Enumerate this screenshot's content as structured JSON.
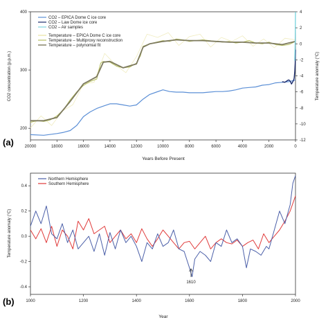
{
  "colors": {
    "co2_epica": "#5b8fd6",
    "co2_law": "#1a2a6c",
    "co2_air": "#7fd6e0",
    "temp_epica": "#f0ecc0",
    "temp_multiproxy": "#b6bf60",
    "temp_fit": "#7d7a5e",
    "nh": "#4b5fa8",
    "sh": "#e03a3a",
    "axis": "#333333"
  },
  "panel_a": {
    "label": "(a)",
    "xlabel": "Years Before Present",
    "ylabel_left": "CO2 concentration (p.p.m.)",
    "ylabel_right": "Temperature anomaly (°C)",
    "xticks": [
      "20000",
      "18000",
      "16000",
      "14000",
      "12000",
      "10000",
      "8000",
      "6000",
      "4000",
      "2000",
      "0"
    ],
    "yticks_left": [
      "200",
      "300",
      "400"
    ],
    "yticks_right": [
      "4",
      "2",
      "0",
      "-2",
      "-4",
      "-6",
      "-8",
      "-10",
      "-12"
    ],
    "legend_top": [
      "CO2 – EPICA Dome C ice core",
      "CO2 – Law Dome ice core",
      "CO2 – Air samples"
    ],
    "legend_bottom": [
      "Temperature – EPICA Dome C ice core",
      "Temperature – Multiproxy reconstruction",
      "Temperature – polynomial fit"
    ]
  },
  "panel_b": {
    "label": "(b)",
    "xlabel": "Year",
    "ylabel": "Temperature anomaly (°C)",
    "xticks": [
      "1000",
      "1200",
      "1400",
      "1600",
      "1800",
      "2000"
    ],
    "yticks": [
      "0.4",
      "0.2",
      "0.0",
      "-0.2",
      "-0.4"
    ],
    "legend": [
      "Northern Hemisphere",
      "Southern Hemisphere"
    ],
    "annotation": "1610"
  },
  "chart_data": [
    {
      "type": "line",
      "title": "",
      "xlabel": "Years Before Present",
      "ylabel": "CO2 concentration (p.p.m.)",
      "y2label": "Temperature anomaly (°C)",
      "xlim": [
        20000,
        0
      ],
      "ylim": [
        180,
        400
      ],
      "y2lim": [
        -12,
        4
      ],
      "series": [
        {
          "name": "CO2 – EPICA Dome C ice core",
          "axis": "left",
          "x": [
            20000,
            19000,
            18000,
            17500,
            17000,
            16500,
            16000,
            15500,
            15000,
            14500,
            14000,
            13500,
            13000,
            12500,
            12000,
            11500,
            11000,
            10500,
            10000,
            9500,
            9000,
            8500,
            8000,
            7500,
            7000,
            6500,
            6000,
            5500,
            5000,
            4500,
            4000,
            3500,
            3000,
            2500,
            2000,
            1500,
            1000,
            500,
            0
          ],
          "y": [
            189,
            188,
            191,
            193,
            196,
            205,
            220,
            228,
            234,
            238,
            242,
            242,
            240,
            238,
            240,
            250,
            258,
            262,
            266,
            263,
            262,
            262,
            261,
            261,
            261,
            262,
            263,
            263,
            264,
            266,
            269,
            270,
            271,
            274,
            275,
            278,
            279,
            280,
            283
          ]
        },
        {
          "name": "CO2 – Law Dome ice core",
          "axis": "left",
          "x": [
            1000,
            800,
            600,
            500,
            400,
            300,
            250,
            200,
            150,
            100,
            50,
            20,
            0
          ],
          "y": [
            280,
            279,
            282,
            283,
            281,
            276,
            278,
            280,
            282,
            286,
            298,
            312,
            335
          ]
        },
        {
          "name": "CO2 – Air samples",
          "axis": "left",
          "x": [
            60,
            40,
            20,
            0
          ],
          "y": [
            316,
            330,
            350,
            400
          ]
        },
        {
          "name": "Temperature – Multiproxy reconstruction",
          "axis": "right",
          "x": [
            20000,
            19500,
            19000,
            18500,
            18000,
            17500,
            17000,
            16500,
            16000,
            15500,
            15000,
            14700,
            14500,
            14000,
            13500,
            13000,
            12500,
            12000,
            11700,
            11500,
            11000,
            10500,
            10000,
            9500,
            9000,
            8500,
            8000,
            7500,
            7000,
            6500,
            6000,
            5500,
            5000,
            4500,
            4000,
            3500,
            3000,
            2500,
            2000,
            1500,
            1000,
            500,
            0
          ],
          "y": [
            -9.8,
            -9.6,
            -9.7,
            -9.5,
            -9.0,
            -8.2,
            -7.0,
            -6.0,
            -5.2,
            -4.7,
            -4.4,
            -2.4,
            -2.2,
            -2.3,
            -2.8,
            -3.0,
            -2.9,
            -2.4,
            -1.5,
            -0.3,
            0.0,
            0.2,
            0.4,
            0.3,
            0.6,
            0.5,
            0.3,
            0.4,
            0.5,
            0.4,
            0.3,
            0.2,
            0.3,
            0.1,
            0.2,
            0.4,
            0.1,
            0.0,
            0.2,
            -0.1,
            -0.2,
            -0.1,
            0.3
          ]
        },
        {
          "name": "Temperature – polynomial fit",
          "axis": "right",
          "x": [
            20000,
            19000,
            18000,
            17000,
            16000,
            15000,
            14500,
            14000,
            13000,
            12000,
            11500,
            11000,
            10000,
            9000,
            8000,
            7000,
            6000,
            5000,
            4000,
            3000,
            2000,
            1000,
            0
          ],
          "y": [
            -9.6,
            -9.6,
            -9.2,
            -7.2,
            -5.0,
            -4.1,
            -2.3,
            -2.2,
            -3.0,
            -2.5,
            -0.4,
            0.0,
            0.3,
            0.5,
            0.4,
            0.4,
            0.3,
            0.2,
            0.2,
            0.1,
            0.1,
            -0.1,
            0.3
          ]
        },
        {
          "name": "Temperature – EPICA Dome C ice core",
          "axis": "right",
          "x": [
            20000,
            19200,
            18400,
            17600,
            16800,
            16000,
            15200,
            14400,
            13600,
            12800,
            12000,
            11200,
            10400,
            9600,
            8800,
            8000,
            7200,
            6400,
            5600,
            4800,
            4000,
            3200,
            2400,
            1600,
            800,
            0
          ],
          "y": [
            -10.5,
            -9.0,
            -10.2,
            -8.4,
            -7.6,
            -5.0,
            -4.8,
            -1.2,
            -2.6,
            -3.6,
            -1.6,
            1.2,
            0.8,
            1.4,
            -0.2,
            0.9,
            1.2,
            -0.4,
            0.8,
            0.3,
            1.0,
            -0.3,
            0.6,
            -0.5,
            0.7,
            0.5
          ]
        }
      ]
    },
    {
      "type": "line",
      "title": "",
      "xlabel": "Year",
      "ylabel": "Temperature anomaly (°C)",
      "xlim": [
        1000,
        2000
      ],
      "ylim": [
        -0.46,
        0.5
      ],
      "series": [
        {
          "name": "Northern Hemisphere",
          "x": [
            1000,
            1020,
            1040,
            1060,
            1080,
            1100,
            1120,
            1140,
            1160,
            1180,
            1200,
            1220,
            1240,
            1260,
            1280,
            1300,
            1320,
            1340,
            1360,
            1380,
            1400,
            1420,
            1440,
            1460,
            1480,
            1500,
            1520,
            1540,
            1560,
            1580,
            1600,
            1610,
            1620,
            1640,
            1660,
            1680,
            1700,
            1720,
            1740,
            1760,
            1780,
            1800,
            1815,
            1830,
            1850,
            1870,
            1890,
            1900,
            1920,
            1940,
            1960,
            1980,
            1990,
            2000
          ],
          "y": [
            0.08,
            0.2,
            0.1,
            0.24,
            0.02,
            -0.02,
            0.1,
            -0.05,
            0.05,
            -0.1,
            -0.05,
            0.0,
            -0.12,
            0.02,
            -0.15,
            0.03,
            -0.1,
            0.05,
            -0.05,
            0.0,
            -0.08,
            -0.2,
            -0.05,
            -0.1,
            0.02,
            -0.08,
            -0.05,
            0.05,
            -0.1,
            -0.12,
            -0.25,
            -0.32,
            -0.18,
            -0.12,
            -0.15,
            -0.2,
            -0.05,
            -0.08,
            0.05,
            -0.05,
            -0.02,
            -0.08,
            -0.25,
            -0.1,
            -0.12,
            -0.15,
            -0.08,
            -0.1,
            0.05,
            0.2,
            0.1,
            0.25,
            0.42,
            0.48
          ]
        },
        {
          "name": "Southern Hemisphere",
          "x": [
            1000,
            1020,
            1040,
            1060,
            1080,
            1100,
            1120,
            1140,
            1160,
            1180,
            1200,
            1220,
            1240,
            1260,
            1280,
            1300,
            1320,
            1340,
            1360,
            1380,
            1400,
            1420,
            1440,
            1460,
            1480,
            1500,
            1520,
            1540,
            1560,
            1580,
            1600,
            1620,
            1640,
            1660,
            1680,
            1700,
            1720,
            1740,
            1760,
            1780,
            1800,
            1820,
            1840,
            1860,
            1880,
            1900,
            1920,
            1940,
            1960,
            1980,
            2000
          ],
          "y": [
            0.05,
            -0.02,
            0.06,
            -0.05,
            0.08,
            -0.08,
            0.05,
            0.0,
            -0.1,
            0.12,
            0.05,
            0.14,
            0.02,
            0.05,
            0.08,
            -0.05,
            0.0,
            0.05,
            -0.02,
            0.02,
            -0.05,
            0.06,
            -0.02,
            -0.08,
            -0.02,
            0.05,
            0.0,
            -0.05,
            -0.1,
            -0.05,
            -0.04,
            -0.1,
            -0.05,
            0.0,
            -0.1,
            -0.05,
            -0.02,
            -0.05,
            -0.06,
            -0.03,
            -0.08,
            -0.05,
            -0.03,
            -0.1,
            0.02,
            -0.05,
            0.0,
            0.05,
            0.12,
            0.2,
            0.32
          ]
        }
      ],
      "annotations": [
        {
          "text": "1610",
          "x": 1610,
          "y": -0.32
        }
      ]
    }
  ]
}
